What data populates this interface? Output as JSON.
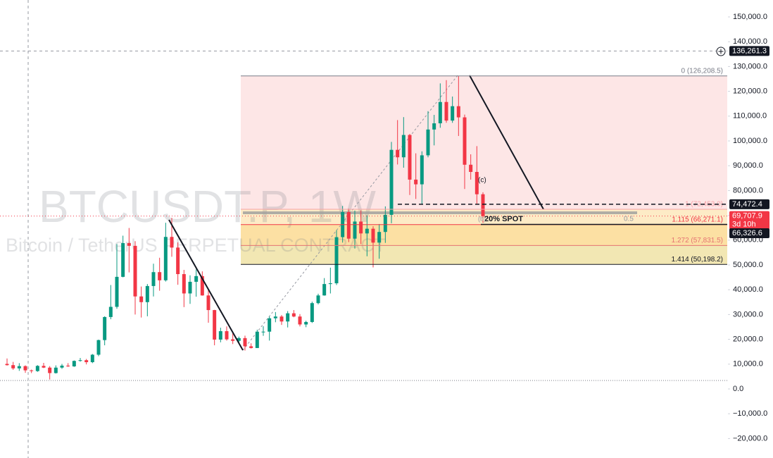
{
  "chart_data": {
    "type": "candlestick",
    "title": "BTCUSDT.P, 1W",
    "subtitle": "Bitcoin / TetherUS PERPETUAL CONTRACT",
    "up_color": "#089981",
    "down_color": "#f23645",
    "ylim": [
      -27841,
      156818
    ],
    "yticks": [
      {
        "value": -20000,
        "label": "−20,000.0"
      },
      {
        "value": -10000,
        "label": "−10,000.0"
      },
      {
        "value": 0,
        "label": "0.0"
      },
      {
        "value": 10000,
        "label": "10,000.0"
      },
      {
        "value": 20000,
        "label": "20,000.0"
      },
      {
        "value": 30000,
        "label": "30,000.0"
      },
      {
        "value": 40000,
        "label": "40,000.0"
      },
      {
        "value": 50000,
        "label": "50,000.0"
      },
      {
        "value": 60000,
        "label": "60,000.0"
      },
      {
        "value": 70000,
        "label": "70,000.0"
      },
      {
        "value": 80000,
        "label": "80,000.0"
      },
      {
        "value": 90000,
        "label": "90,000.0"
      },
      {
        "value": 100000,
        "label": "100,000.0"
      },
      {
        "value": 110000,
        "label": "110,000.0"
      },
      {
        "value": 120000,
        "label": "120,000.0"
      },
      {
        "value": 130000,
        "label": "130,000.0"
      },
      {
        "value": 140000,
        "label": "140,000.0"
      },
      {
        "value": 150000,
        "label": "150,000.0"
      }
    ],
    "open": [
      10100,
      9600,
      8300,
      9200,
      7500,
      7200,
      9300,
      8600,
      6400,
      8600,
      9400,
      9100,
      11300,
      11600,
      10800,
      13800,
      19700,
      29000,
      33100,
      45200,
      58800,
      57700,
      37300,
      35000,
      41500,
      47100,
      43800,
      61300,
      57000,
      46300,
      38500,
      43200,
      45500,
      37700,
      31800,
      19900,
      23300,
      20000,
      19400,
      20500,
      17200,
      16500,
      23100,
      23100,
      28500,
      29200,
      27200,
      30500,
      29200,
      26000,
      27000,
      34600,
      37700,
      42300,
      42600,
      61200,
      71300,
      60600,
      67500,
      62700,
      64600,
      59000,
      63300,
      70200,
      96400,
      93400,
      102400,
      84400,
      82500,
      94200,
      104600,
      107100,
      115700,
      108200,
      114000,
      109500,
      90400,
      87500,
      78500
    ],
    "high": [
      12300,
      10900,
      10400,
      9500,
      7800,
      9600,
      10500,
      9200,
      9500,
      10100,
      10400,
      11500,
      12500,
      12100,
      14100,
      19900,
      29300,
      41900,
      58400,
      61800,
      64900,
      59600,
      41300,
      42300,
      50500,
      52900,
      67000,
      69000,
      59100,
      48000,
      45800,
      48200,
      47400,
      40000,
      31900,
      24700,
      25200,
      22800,
      21100,
      21500,
      18400,
      23900,
      25300,
      29200,
      31000,
      29800,
      31400,
      31800,
      30200,
      27500,
      35200,
      38400,
      44700,
      48900,
      64000,
      73800,
      72700,
      71900,
      72000,
      70000,
      65600,
      66500,
      73600,
      99600,
      108400,
      109600,
      102800,
      95000,
      95800,
      112000,
      110500,
      123200,
      124500,
      117900,
      126208.5,
      110600,
      94600,
      97900,
      79300
    ],
    "low": [
      9400,
      7700,
      7300,
      6500,
      6400,
      6900,
      8400,
      3800,
      6200,
      8100,
      8900,
      8900,
      11000,
      9900,
      10400,
      13200,
      17600,
      28100,
      32300,
      45000,
      47000,
      30000,
      28800,
      29300,
      37300,
      39600,
      43300,
      53300,
      42000,
      33000,
      34300,
      37200,
      37600,
      26700,
      17600,
      18800,
      19500,
      18100,
      18200,
      15500,
      16300,
      16500,
      21400,
      19500,
      26900,
      25800,
      24800,
      28900,
      25200,
      24900,
      26600,
      34100,
      37600,
      38500,
      41900,
      59000,
      59200,
      56600,
      58400,
      53500,
      49000,
      52500,
      58900,
      66800,
      90500,
      89200,
      78200,
      76600,
      74400,
      93400,
      98200,
      105300,
      107300,
      107300,
      102000,
      80600,
      84400,
      74500,
      67000
    ],
    "close": [
      9600,
      8300,
      9200,
      7500,
      7200,
      9300,
      8600,
      6400,
      8600,
      9400,
      9100,
      11300,
      11600,
      10800,
      13800,
      19700,
      29000,
      33100,
      45200,
      58800,
      57700,
      37300,
      35000,
      41500,
      47100,
      43800,
      61300,
      57000,
      46300,
      38500,
      43200,
      45500,
      37700,
      31800,
      19900,
      23300,
      20000,
      19400,
      20500,
      17200,
      16500,
      23100,
      23100,
      28500,
      29200,
      27200,
      30500,
      29200,
      26000,
      27000,
      34600,
      37700,
      42300,
      42600,
      61200,
      71300,
      60600,
      67500,
      62700,
      64600,
      59000,
      63300,
      70200,
      96400,
      93400,
      102400,
      84400,
      82500,
      94200,
      104600,
      107100,
      115700,
      108200,
      114000,
      109500,
      90400,
      87500,
      78500,
      69707.9
    ],
    "fib_levels": [
      {
        "value": 126208.5,
        "label": "0 (126,208.5)",
        "color": "#787b86"
      },
      {
        "value": 72453.0,
        "label": "1 (72,453.0)",
        "color": "#f7a1a8",
        "fill": "#fde6e6"
      },
      {
        "value": 66271.1,
        "label": "1.115 (66,271.1)",
        "color": "#f23645",
        "fill": "#fdebc6"
      },
      {
        "value": 57831.5,
        "label": "1.272 (57,831.5)",
        "color": "#e57373",
        "fill": "#fce0a3"
      },
      {
        "value": 50198.2,
        "label": "1.414 (50,198.2)",
        "color": "#131722",
        "fill": "#f2e7b3"
      }
    ],
    "price_labels": [
      {
        "value": 136261.3,
        "label": "136,261.3",
        "color": "#131722"
      },
      {
        "value": 74472.4,
        "label": "74,472.4",
        "color": "#131722"
      },
      {
        "value": 69707.9,
        "label": "69,707.9",
        "color": "#f23645"
      },
      {
        "value": 66326.6,
        "label": "66,326.6",
        "color": "#131722"
      }
    ],
    "countdown": "3d 10h",
    "support_line": 3400,
    "annotations": {
      "spot": "20% SPOT",
      "wave_b": "(b)",
      "wave_c": "(c)",
      "fib_mid": "0.5"
    }
  }
}
